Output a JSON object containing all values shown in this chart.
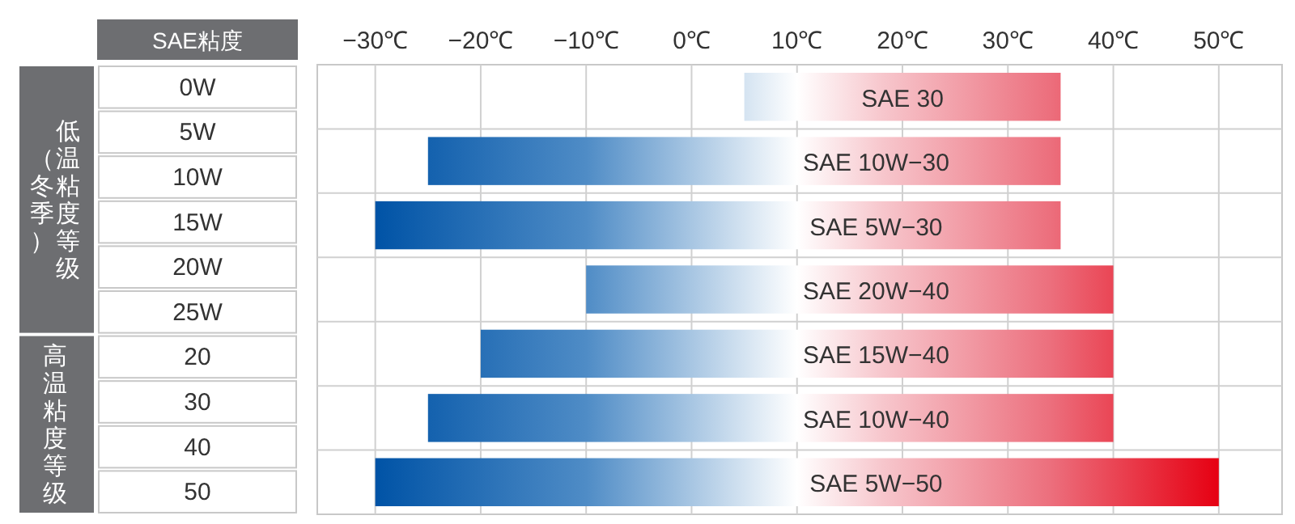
{
  "chart_data": [
    {
      "type": "other",
      "title": "SAE粘度",
      "categories": [
        "0W",
        "5W",
        "10W",
        "15W",
        "20W",
        "25W",
        "20",
        "30",
        "40",
        "50"
      ],
      "annotations": [
        "低温粘度等级",
        "（冬季）",
        "高温粘度等级"
      ]
    },
    {
      "type": "bar",
      "orientation": "horizontal",
      "categories": [
        "SAE 30",
        "SAE 10W−30",
        "SAE 5W−30",
        "SAE 20W−40",
        "SAE 15W−40",
        "SAE 10W−40",
        "SAE 5W−50"
      ],
      "base": [
        5,
        -25,
        -30,
        -10,
        -20,
        -25,
        -30
      ],
      "values": [
        30,
        60,
        65,
        50,
        60,
        65,
        80
      ],
      "xlim": [
        -35.5,
        56
      ],
      "xticks": [
        {
          "value": -30,
          "label": "−30℃"
        },
        {
          "value": -20,
          "label": "−20℃"
        },
        {
          "value": -10,
          "label": "−10℃"
        },
        {
          "value": 0,
          "label": "0℃"
        },
        {
          "value": 10,
          "label": "10℃"
        },
        {
          "value": 20,
          "label": "20℃"
        },
        {
          "value": 30,
          "label": "30℃"
        },
        {
          "value": 40,
          "label": "40℃"
        },
        {
          "value": 50,
          "label": "50℃"
        }
      ],
      "grid": true
    }
  ]
}
